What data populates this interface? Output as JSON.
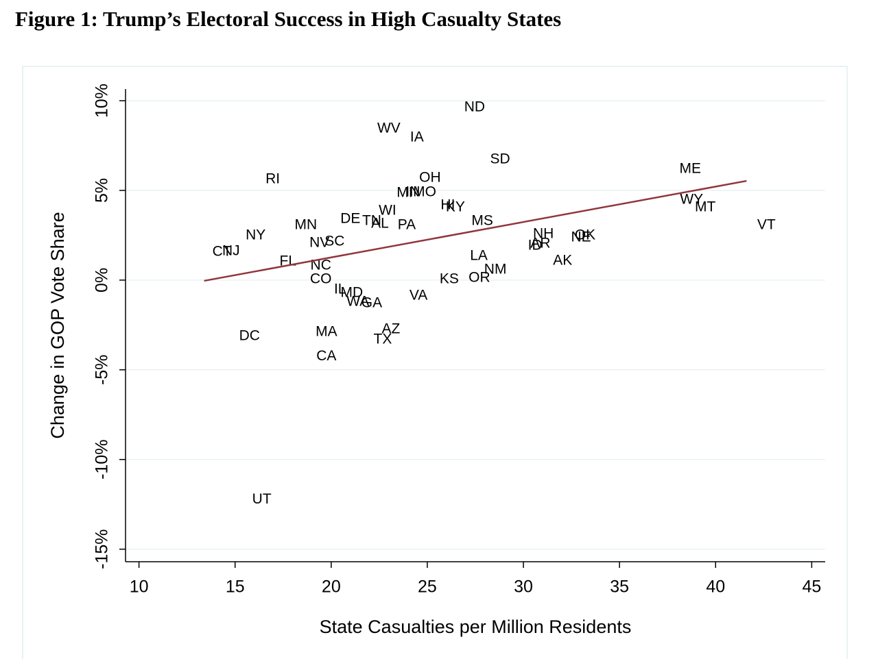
{
  "chart_data": {
    "type": "scatter",
    "title": "Figure 1: Trump’s Electoral Success in High Casualty States",
    "x_label": "State Casualties per Million Residents",
    "y_label": "Change in GOP Vote Share",
    "labels": [
      "ND",
      "WV",
      "IA",
      "SD",
      "ME",
      "RI",
      "OH",
      "MI",
      "IN",
      "MO",
      "HI",
      "KY",
      "WY",
      "MT",
      "WI",
      "DE",
      "TN",
      "AL",
      "PA",
      "MS",
      "MN",
      "NY",
      "VT",
      "NH",
      "OK",
      "NE",
      "ID",
      "AR",
      "NV",
      "SC",
      "CT",
      "NJ",
      "FL",
      "NC",
      "LA",
      "AK",
      "NM",
      "OR",
      "KS",
      "CO",
      "IL",
      "MD",
      "WA",
      "GA",
      "VA",
      "DC",
      "MA",
      "AZ",
      "TX",
      "CA",
      "UT"
    ],
    "x": [
      27.46,
      23.0,
      24.46,
      28.79,
      38.68,
      16.96,
      25.14,
      23.82,
      24.25,
      24.86,
      26.07,
      26.46,
      38.75,
      39.46,
      22.93,
      21.0,
      22.11,
      22.54,
      23.93,
      27.86,
      18.68,
      16.07,
      42.64,
      31.04,
      33.21,
      33.0,
      30.61,
      30.89,
      19.39,
      20.18,
      14.32,
      14.79,
      17.75,
      19.46,
      27.68,
      32.04,
      28.54,
      27.71,
      26.14,
      19.46,
      20.46,
      21.07,
      21.39,
      22.11,
      24.54,
      15.75,
      19.75,
      23.11,
      22.68,
      19.75,
      16.39
    ],
    "values": [
      9.62,
      8.44,
      7.94,
      6.72,
      6.18,
      5.61,
      5.69,
      4.85,
      4.89,
      4.89,
      4.16,
      4.05,
      4.47,
      4.05,
      3.85,
      3.4,
      3.28,
      3.13,
      3.05,
      3.28,
      3.05,
      2.48,
      3.05,
      2.56,
      2.48,
      2.37,
      1.91,
      2.02,
      2.06,
      2.14,
      1.56,
      1.6,
      1.03,
      0.8,
      1.34,
      1.07,
      0.57,
      0.11,
      0.04,
      0.04,
      -0.53,
      -0.73,
      -1.22,
      -1.3,
      -0.88,
      -3.13,
      -2.9,
      -2.75,
      -3.32,
      -4.27,
      -12.25
    ],
    "color": "#1a476f",
    "fit": {
      "x": [
        13.39,
        41.61
      ],
      "values": [
        -0.04,
        5.53
      ],
      "color": "#90353b"
    },
    "xlim": [
      9.3,
      45.7
    ],
    "xticks": [
      10,
      15,
      20,
      25,
      30,
      35,
      40,
      45
    ],
    "ylim": [
      -15.7,
      10.65
    ],
    "yticks": [
      {
        "value": -15,
        "label": "-15%"
      },
      {
        "value": -10,
        "label": "-10%"
      },
      {
        "value": -5,
        "label": "-5%"
      },
      {
        "value": 0,
        "label": "0%"
      },
      {
        "value": 5,
        "label": "5%"
      },
      {
        "value": 10,
        "label": "10%"
      }
    ],
    "grid": true
  }
}
